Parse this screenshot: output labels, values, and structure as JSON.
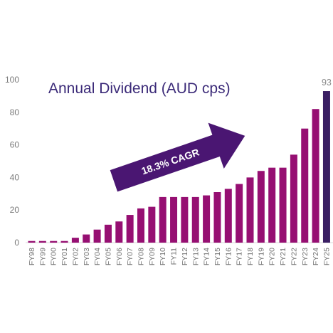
{
  "chart_data": {
    "type": "bar",
    "title": "Annual Dividend (AUD cps)",
    "annotation": "18.3% CAGR",
    "xlabel": "",
    "ylabel": "",
    "ylim": [
      0,
      100
    ],
    "yticks": [
      0,
      20,
      40,
      60,
      80,
      100
    ],
    "grid": false,
    "categories": [
      "FY98",
      "FY99",
      "FY00",
      "FY01",
      "FY02",
      "FY03",
      "FY04",
      "FY05",
      "FY06",
      "FY07",
      "FY08",
      "FY09",
      "FY10",
      "FY11",
      "FY12",
      "FY13",
      "FY14",
      "FY15",
      "FY16",
      "FY17",
      "FY18",
      "FY19",
      "FY20",
      "FY21",
      "FY22",
      "FY23",
      "FY24",
      "FY25"
    ],
    "values": [
      1,
      1,
      1,
      1,
      3,
      5,
      8,
      11,
      13,
      17,
      21,
      22,
      28,
      28,
      28,
      28,
      29,
      31,
      33,
      36,
      40,
      44,
      46,
      46,
      54,
      70,
      82,
      93
    ],
    "data_labels": [
      {
        "category": "FY25",
        "text": "93"
      }
    ],
    "colors": {
      "bar": "#960f72",
      "highlight_bar": "#3a1f63",
      "arrow": "#4a1672",
      "title": "#3b2a78"
    },
    "highlight_category": "FY25"
  }
}
